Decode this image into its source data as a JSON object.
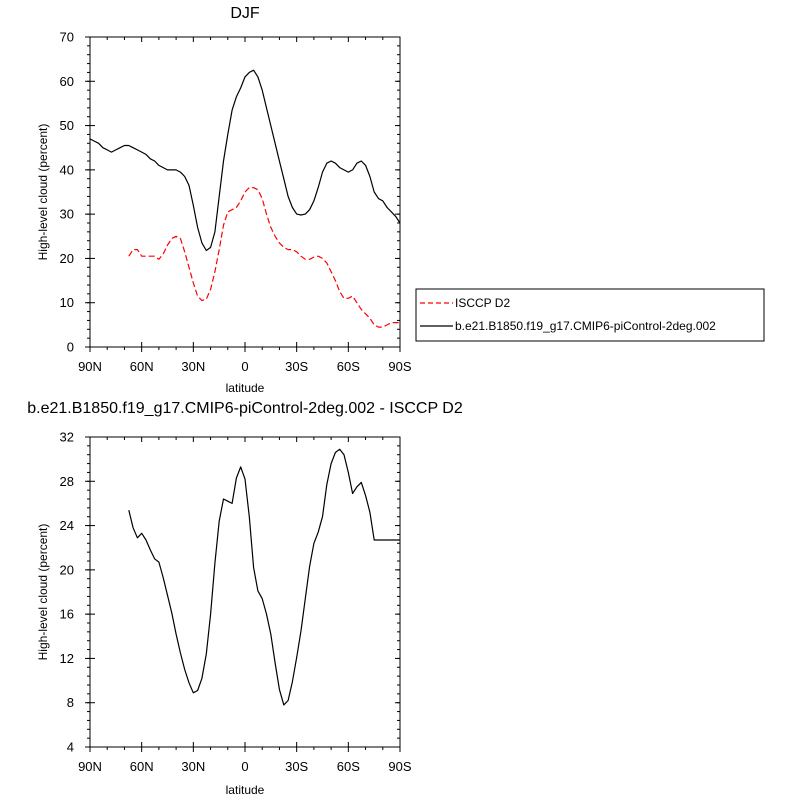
{
  "chart_data": [
    {
      "type": "line",
      "title": "DJF",
      "xlabel": "latitude",
      "ylabel": "High-level cloud (percent)",
      "xlim": [
        90,
        -90
      ],
      "ylim": [
        0,
        70
      ],
      "x_ticks": [
        90,
        60,
        30,
        0,
        -30,
        -60,
        -90
      ],
      "x_tick_labels": [
        "90N",
        "60N",
        "30N",
        "0",
        "30S",
        "60S",
        "90S"
      ],
      "y_ticks": [
        0,
        10,
        20,
        30,
        40,
        50,
        60,
        70
      ],
      "y_tick_labels": [
        "0",
        "10",
        "20",
        "30",
        "40",
        "50",
        "60",
        "70"
      ],
      "grid": false,
      "legend_position": "right",
      "series": [
        {
          "name": "ISCCP D2",
          "color": "#ff0000",
          "dash": true,
          "x": [
            67.5,
            65,
            62.5,
            60,
            57.5,
            55,
            52.5,
            50,
            47.5,
            45,
            42.5,
            40,
            37.5,
            35,
            32.5,
            30,
            27.5,
            25,
            22.5,
            20,
            17.5,
            15,
            12.5,
            10,
            7.5,
            5,
            2.5,
            0,
            -2.5,
            -5,
            -7.5,
            -10,
            -12.5,
            -15,
            -17.5,
            -20,
            -22.5,
            -25,
            -27.5,
            -30,
            -32.5,
            -35,
            -37.5,
            -40,
            -42.5,
            -45,
            -47.5,
            -50,
            -52.5,
            -55,
            -57.5,
            -60,
            -62.5,
            -65,
            -67.5,
            -70,
            -72.5,
            -75,
            -77.5,
            -80,
            -82.5,
            -85,
            -87.5,
            -90
          ],
          "y": [
            20.5,
            22,
            22,
            20.5,
            20.5,
            20.5,
            20.5,
            19.8,
            21,
            23,
            24.5,
            25,
            24.5,
            21.5,
            18,
            14.5,
            11.5,
            10.5,
            10.8,
            13,
            17,
            22,
            27.5,
            30.5,
            31,
            31.5,
            33,
            35,
            36,
            36,
            35.5,
            33.5,
            30,
            27,
            25,
            23.5,
            22.5,
            22,
            22,
            21.5,
            20.5,
            19.8,
            19.8,
            20.3,
            20.5,
            20,
            19,
            17,
            15,
            12.5,
            11,
            11,
            11.5,
            10,
            8.5,
            7.5,
            6.5,
            5,
            4.5,
            4.5,
            5,
            5.5,
            5.5,
            5.5
          ]
        },
        {
          "name": "b.e21.B1850.f19_g17.CMIP6-piControl-2deg.002",
          "color": "#000000",
          "dash": false,
          "x": [
            90,
            87.5,
            85,
            82.5,
            80,
            77.5,
            75,
            72.5,
            70,
            67.5,
            65,
            62.5,
            60,
            57.5,
            55,
            52.5,
            50,
            47.5,
            45,
            42.5,
            40,
            37.5,
            35,
            32.5,
            30,
            27.5,
            25,
            22.5,
            20,
            17.5,
            15,
            12.5,
            10,
            7.5,
            5,
            2.5,
            0,
            -2.5,
            -5,
            -7.5,
            -10,
            -12.5,
            -15,
            -17.5,
            -20,
            -22.5,
            -25,
            -27.5,
            -30,
            -32.5,
            -35,
            -37.5,
            -40,
            -42.5,
            -45,
            -47.5,
            -50,
            -52.5,
            -55,
            -57.5,
            -60,
            -62.5,
            -65,
            -67.5,
            -70,
            -72.5,
            -75,
            -77.5,
            -80,
            -82.5,
            -85,
            -87.5,
            -90
          ],
          "y": [
            47,
            46.5,
            46,
            45,
            44.5,
            44,
            44.5,
            45,
            45.5,
            45.5,
            45,
            44.5,
            44,
            43.5,
            42.5,
            42,
            41,
            40.5,
            40,
            40,
            40,
            39.5,
            38.5,
            36.5,
            32,
            27,
            23.5,
            21.8,
            22.5,
            26,
            34,
            42,
            48,
            53.5,
            56.5,
            58.5,
            61,
            62,
            62.5,
            61,
            58,
            54,
            50,
            46,
            42,
            38,
            34,
            31.5,
            30,
            29.8,
            30,
            31,
            33,
            36,
            39.5,
            41.5,
            42,
            41.5,
            40.5,
            40,
            39.5,
            40,
            41.5,
            42,
            41,
            38.5,
            35,
            33.5,
            33,
            31.5,
            30.5,
            29.5,
            28
          ]
        }
      ]
    },
    {
      "type": "line",
      "title": "b.e21.B1850.f19_g17.CMIP6-piControl-2deg.002 - ISCCP D2",
      "xlabel": "latitude",
      "ylabel": "High-level cloud (percent)",
      "xlim": [
        90,
        -90
      ],
      "ylim": [
        4,
        32
      ],
      "x_ticks": [
        90,
        60,
        30,
        0,
        -30,
        -60,
        -90
      ],
      "x_tick_labels": [
        "90N",
        "60N",
        "30N",
        "0",
        "30S",
        "60S",
        "90S"
      ],
      "y_ticks": [
        4,
        8,
        12,
        16,
        20,
        24,
        28,
        32
      ],
      "y_tick_labels": [
        "4",
        "8",
        "12",
        "16",
        "20",
        "24",
        "28",
        "32"
      ],
      "grid": false,
      "series": [
        {
          "color": "#000000",
          "dash": false,
          "x": [
            67.5,
            65,
            62.5,
            60,
            57.5,
            55,
            52.5,
            50,
            47.5,
            45,
            42.5,
            40,
            37.5,
            35,
            32.5,
            30,
            27.5,
            25,
            22.5,
            20,
            17.5,
            15,
            12.5,
            10,
            7.5,
            5,
            2.5,
            0,
            -2.5,
            -5,
            -7.5,
            -10,
            -12.5,
            -15,
            -17.5,
            -20,
            -22.5,
            -25,
            -27.5,
            -30,
            -32.5,
            -35,
            -37.5,
            -40,
            -42.5,
            -45,
            -47.5,
            -50,
            -52.5,
            -55,
            -57.5,
            -60,
            -62.5,
            -65,
            -67.5,
            -70,
            -72.5,
            -75,
            -77.5,
            -80,
            -82.5,
            -85,
            -87.5,
            -90
          ],
          "y": [
            25.4,
            23.8,
            22.9,
            23.3,
            22.7,
            21.8,
            21,
            20.7,
            19.3,
            17.7,
            16.1,
            14.2,
            12.5,
            11,
            9.8,
            8.9,
            9.1,
            10.2,
            12.4,
            16,
            20.6,
            24.4,
            26.4,
            26.2,
            26,
            28.3,
            29.3,
            28.2,
            24.8,
            20.2,
            18.1,
            17.4,
            16,
            14.2,
            11.6,
            9.2,
            7.8,
            8.2,
            9.9,
            12.1,
            14.5,
            17.4,
            20.3,
            22.4,
            23.4,
            24.8,
            27.7,
            29.6,
            30.6,
            30.9,
            30.4,
            28.8,
            26.9,
            27.5,
            27.9,
            26.7,
            25.2,
            22.7,
            22.7,
            22.7,
            22.7,
            22.7,
            22.7,
            22.7
          ]
        }
      ]
    }
  ]
}
